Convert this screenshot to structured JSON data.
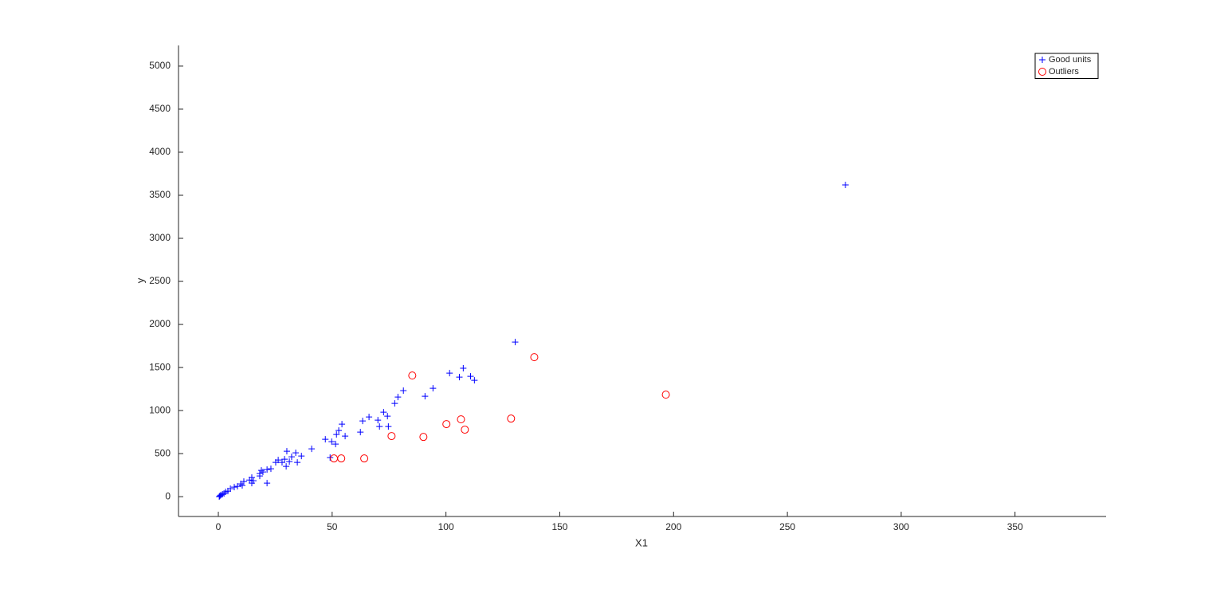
{
  "chart_data": {
    "type": "scatter",
    "xlabel": "X1",
    "ylabel": "y",
    "xlim": [
      -17.5,
      390
    ],
    "ylim": [
      -230,
      5240
    ],
    "xticks": [
      0,
      50,
      100,
      150,
      200,
      250,
      300,
      350
    ],
    "yticks": [
      0,
      500,
      1000,
      1500,
      2000,
      2500,
      3000,
      3500,
      4000,
      4500,
      5000
    ],
    "legend": "upper-right",
    "series": [
      {
        "name": "Good units",
        "color": "#0000ff",
        "marker": "plus",
        "x": [
          275.5,
          130.4,
          107.6,
          101.6,
          110.8,
          105.9,
          112.5,
          94.3,
          81.3,
          78.9,
          90.8,
          77.5,
          72.6,
          74.3,
          66.2,
          63.4,
          70.1,
          70.8,
          74.7,
          54.3,
          52.9,
          62.4,
          51.9,
          55.7,
          47.0,
          49.8,
          51.5,
          49.1,
          41.0,
          36.5,
          30.1,
          34.0,
          32.2,
          29.1,
          34.7,
          31.2,
          26.3,
          28.0,
          25.2,
          29.8,
          23.1,
          21.4,
          18.9,
          19.6,
          18.2,
          18.2,
          21.4,
          14.7,
          15.4,
          13.7,
          14.7,
          11.2,
          9.8,
          10.5,
          8.4,
          7.0,
          5.3,
          4.2,
          3.2,
          2.5,
          1.8,
          1.1,
          0.7,
          0.4
        ],
        "values": [
          3620,
          1796,
          1491,
          1435,
          1398,
          1389,
          1352,
          1259,
          1231,
          1157,
          1167,
          1083,
          981,
          935,
          926,
          880,
          889,
          815,
          815,
          843,
          769,
          750,
          722,
          704,
          667,
          639,
          611,
          454,
          556,
          472,
          528,
          509,
          463,
          435,
          398,
          407,
          426,
          398,
          398,
          352,
          324,
          315,
          306,
          287,
          269,
          241,
          157,
          222,
          185,
          194,
          157,
          176,
          148,
          130,
          120,
          111,
          93,
          65,
          56,
          37,
          28,
          19,
          9,
          0
        ]
      },
      {
        "name": "Outliers",
        "color": "#ff0000",
        "marker": "circle",
        "x": [
          85.2,
          138.8,
          196.6,
          128.6,
          106.6,
          108.3,
          100.2,
          90.1,
          76.1,
          64.1,
          54.0,
          50.8
        ],
        "values": [
          1407,
          1620,
          1185,
          907,
          898,
          778,
          843,
          694,
          704,
          444,
          444,
          444
        ]
      }
    ]
  }
}
